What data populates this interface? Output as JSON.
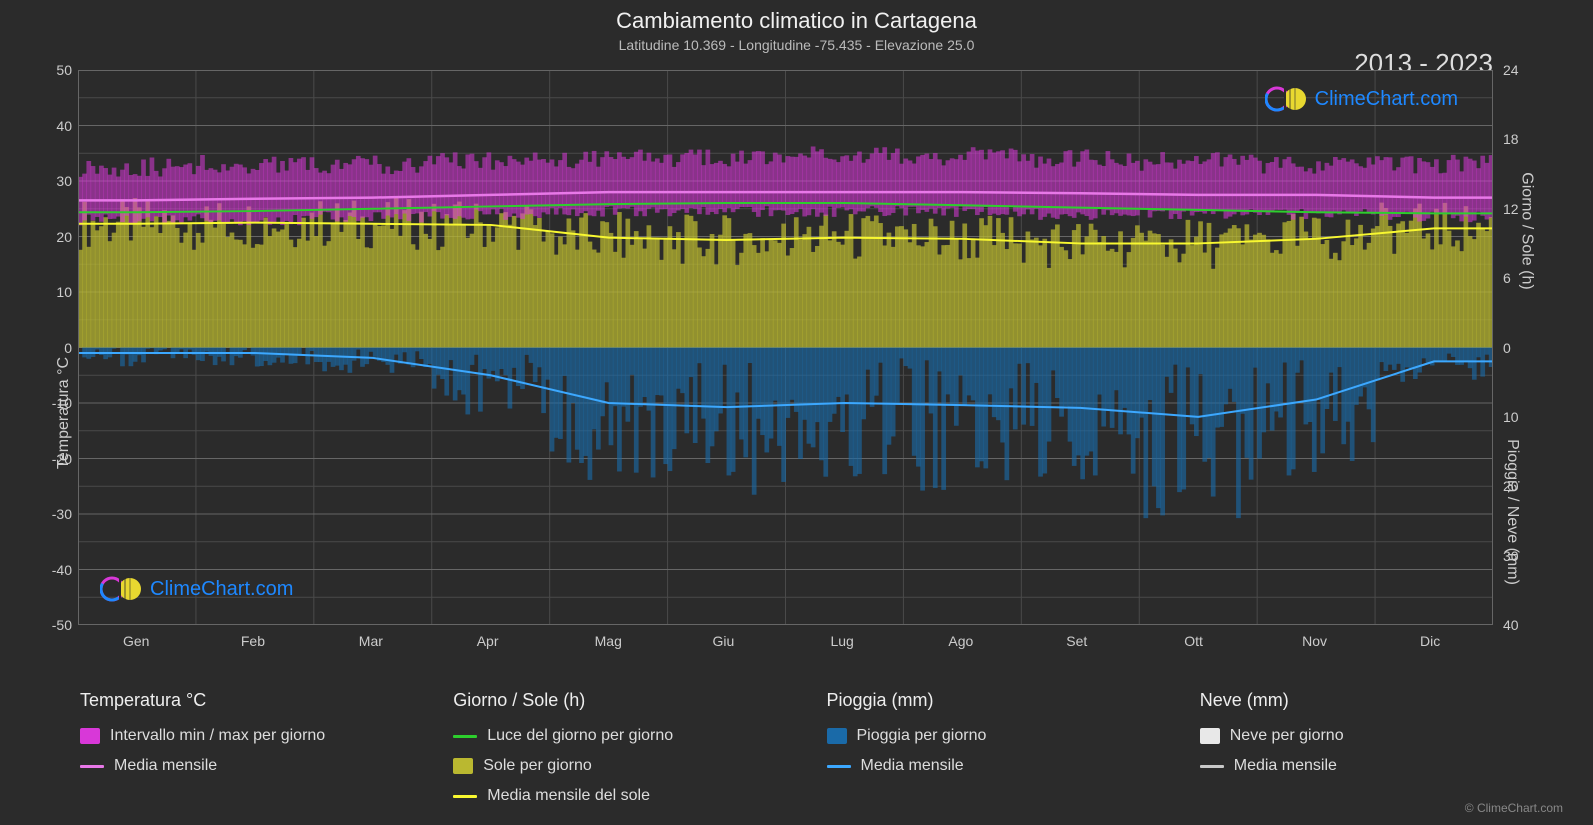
{
  "title": "Cambiamento climatico in Cartagena",
  "subtitle": "Latitudine 10.369 - Longitudine -75.435 - Elevazione 25.0",
  "year_range": "2013 - 2023",
  "watermark_text": "ClimeChart.com",
  "copyright": "© ClimeChart.com",
  "axis_labels": {
    "left": "Temperatura °C",
    "right_top": "Giorno / Sole (h)",
    "right_bottom": "Pioggia / Neve (mm)"
  },
  "legend": {
    "col1": {
      "header": "Temperatura °C",
      "item1": "Intervallo min / max per giorno",
      "item2": "Media mensile"
    },
    "col2": {
      "header": "Giorno / Sole (h)",
      "item1": "Luce del giorno per giorno",
      "item2": "Sole per giorno",
      "item3": "Media mensile del sole"
    },
    "col3": {
      "header": "Pioggia (mm)",
      "item1": "Pioggia per giorno",
      "item2": "Media mensile"
    },
    "col4": {
      "header": "Neve (mm)",
      "item1": "Neve per giorno",
      "item2": "Media mensile"
    }
  },
  "colors": {
    "background": "#2b2b2b",
    "grid": "#666666",
    "grid_minor": "#4a4a4a",
    "text": "#dddddd",
    "text_dim": "#bbbbbb",
    "temp_range": "#d838d8",
    "temp_mean": "#e878e8",
    "daylight_line": "#2dce2d",
    "sun_fill": "#bab830",
    "sun_mean": "#f8f830",
    "rain_fill": "#1a6aa8",
    "rain_mean": "#3ca8ff",
    "snow_fill": "#e8e8e8",
    "snow_mean": "#c8c8c8",
    "watermark_blue": "#1e88ff",
    "watermark_magenta": "#d838d8",
    "watermark_yellow": "#e8d830"
  },
  "chart": {
    "months": [
      "Gen",
      "Feb",
      "Mar",
      "Apr",
      "Mag",
      "Giu",
      "Lug",
      "Ago",
      "Set",
      "Ott",
      "Nov",
      "Dic"
    ],
    "left_axis": {
      "min": -50,
      "max": 50,
      "step": 10
    },
    "right_axis_top": {
      "min": 0,
      "max": 24,
      "step": 6
    },
    "right_axis_bottom": {
      "min": 0,
      "max": 40,
      "step": 10
    },
    "temp_mean_monthly": [
      26.5,
      26.8,
      27.0,
      27.5,
      28.0,
      28.0,
      28.0,
      28.0,
      27.8,
      27.5,
      27.5,
      27.0
    ],
    "temp_range_low": [
      23,
      23,
      23.5,
      24,
      24.5,
      24.5,
      24.5,
      24.5,
      24,
      24,
      24,
      23.5
    ],
    "temp_range_high": [
      32.5,
      33,
      33,
      33.5,
      34,
      34,
      34.5,
      34.5,
      34,
      33.5,
      33,
      33
    ],
    "daylight_h": [
      11.7,
      11.8,
      12.0,
      12.2,
      12.4,
      12.5,
      12.5,
      12.3,
      12.1,
      11.9,
      11.7,
      11.6
    ],
    "sun_mean_h": [
      10.7,
      10.8,
      10.7,
      10.6,
      9.5,
      9.3,
      9.5,
      9.4,
      9.0,
      9.0,
      9.4,
      10.3
    ],
    "rain_mean_mm": [
      0.8,
      0.8,
      1.5,
      4.0,
      8.0,
      8.6,
      8.0,
      8.3,
      8.7,
      10.0,
      7.5,
      2.0
    ],
    "snow_mean_mm": [
      0,
      0,
      0,
      0,
      0,
      0,
      0,
      0,
      0,
      0,
      0,
      0
    ]
  }
}
